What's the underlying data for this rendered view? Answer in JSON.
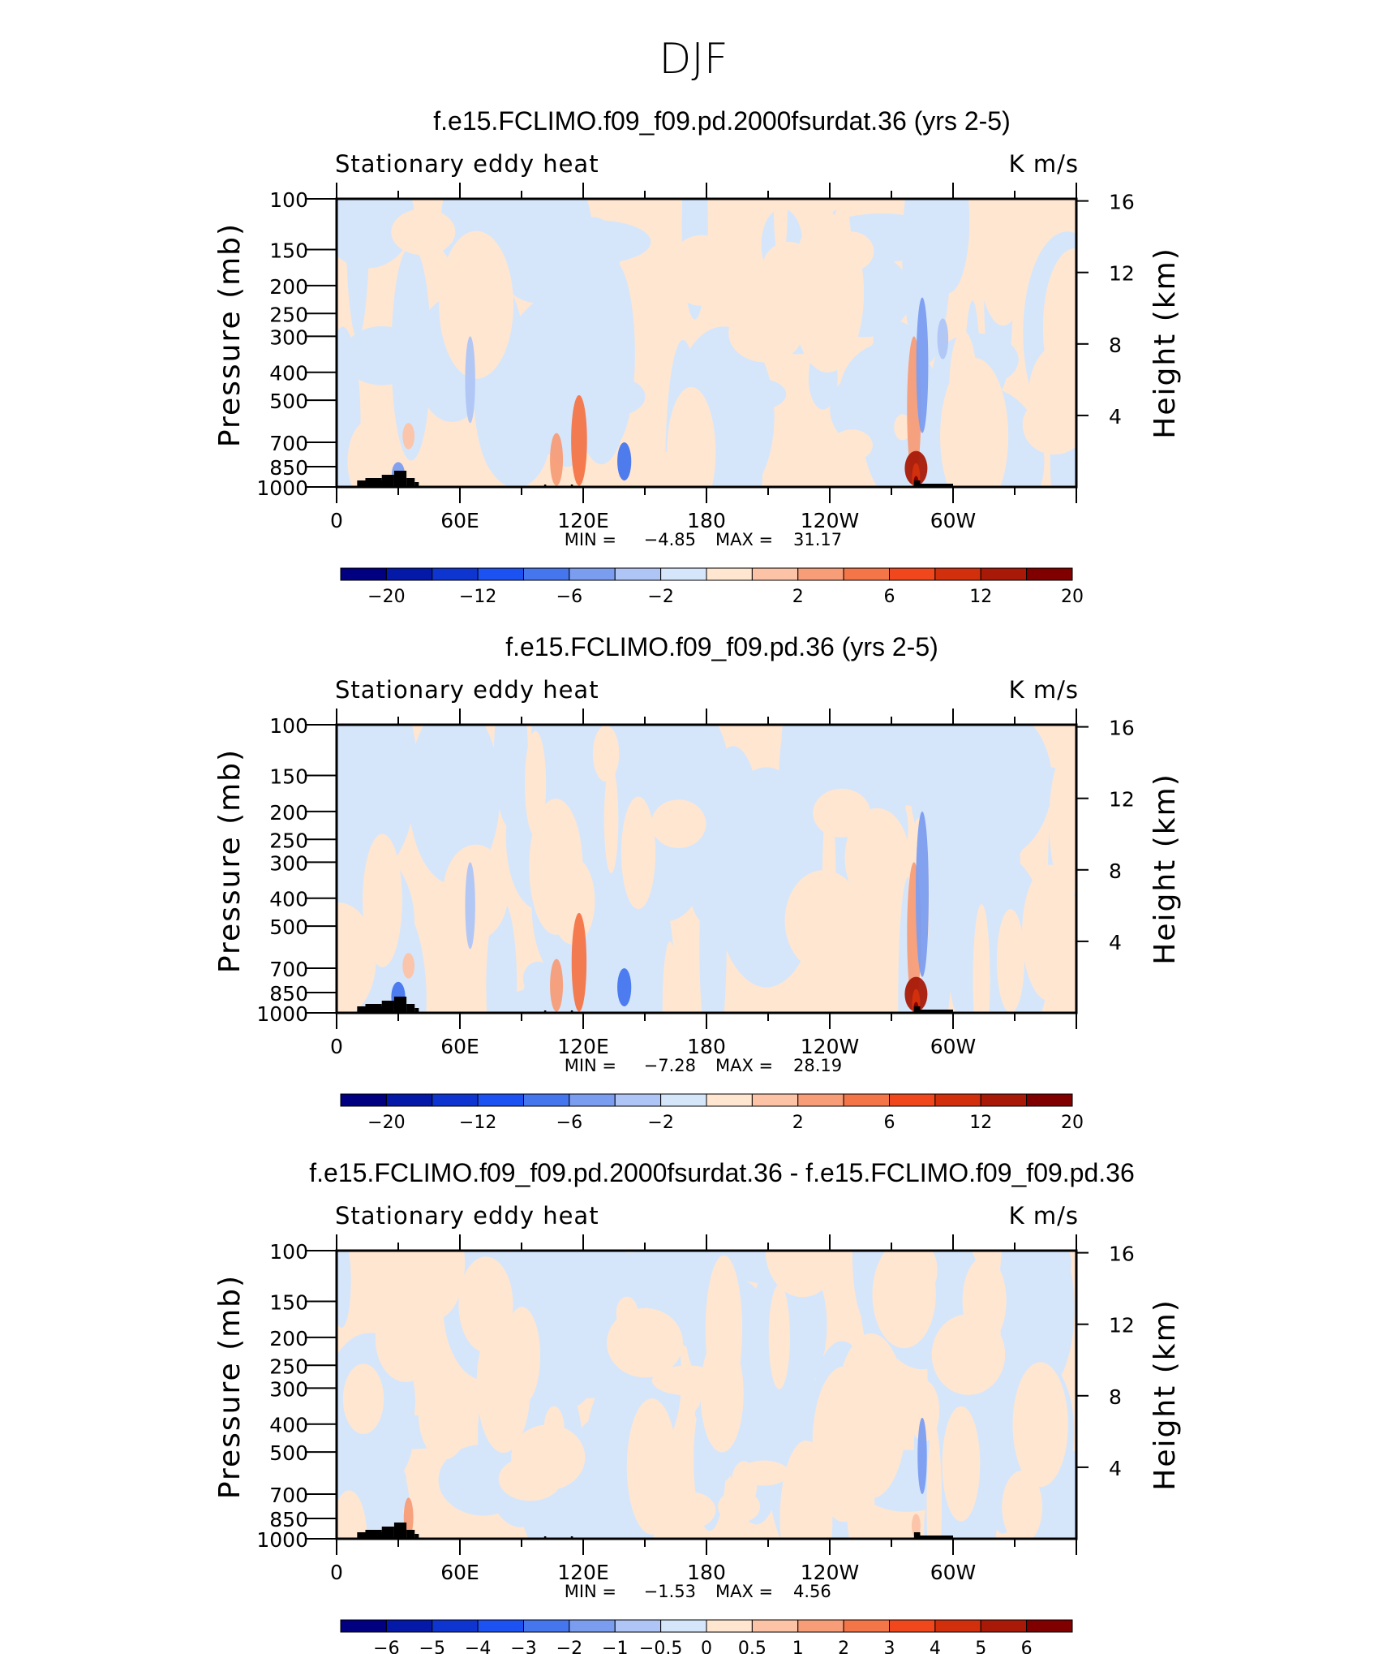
{
  "page": {
    "title": "DJF"
  },
  "colors": {
    "positive_light": "#ffe6d1",
    "negative_light": "#d5e6fb",
    "terrain": "#000000",
    "frame": "#000000"
  },
  "chart_data": [
    {
      "type": "contour",
      "title": "f.e15.FCLIMO.f09_f09.pd.2000fsurdat.36 (yrs 2-5)",
      "left_label": "Stationary eddy heat",
      "right_label": "K m/s",
      "ylabel": "Pressure (mb)",
      "ylabel_right": "Height (km)",
      "x_ticks": [
        "0",
        "60E",
        "120E",
        "180",
        "120W",
        "60W"
      ],
      "y_ticks": [
        "100",
        "150",
        "200",
        "250",
        "300",
        "400",
        "500",
        "700",
        "850",
        "1000"
      ],
      "height_ticks": [
        "16",
        "12",
        "8",
        "4"
      ],
      "stats": {
        "min_label": "MIN =",
        "min": "−4.85",
        "max_label": "MAX =",
        "max": "31.17"
      },
      "colorbar": {
        "colors": [
          "#000080",
          "#0419a8",
          "#0f35d0",
          "#1d52f2",
          "#4576ee",
          "#7b9df0",
          "#afc5f5",
          "#d5e6fb",
          "#ffe6d1",
          "#fcc3a6",
          "#f79d78",
          "#f47548",
          "#f0471d",
          "#d22f0d",
          "#a81a07",
          "#800000"
        ],
        "labels": [
          "−20",
          "−12",
          "−6",
          "−2",
          "2",
          "6",
          "12",
          "20"
        ]
      },
      "anomalies": [
        {
          "lon": 30,
          "p_top": 820,
          "p_bot": 990,
          "value": -5
        },
        {
          "lon": 35,
          "p_top": 600,
          "p_bot": 740,
          "value": 4
        },
        {
          "lon": 65,
          "p_top": 300,
          "p_bot": 600,
          "value": -2
        },
        {
          "lon": 107,
          "p_top": 650,
          "p_bot": 990,
          "value": 5
        },
        {
          "lon": 118,
          "p_top": 480,
          "p_bot": 990,
          "value": 8
        },
        {
          "lon": 140,
          "p_top": 700,
          "p_bot": 950,
          "value": -6
        },
        {
          "lon": 281,
          "p_top": 300,
          "p_bot": 950,
          "value": 6
        },
        {
          "lon": 285,
          "p_top": 220,
          "p_bot": 650,
          "value": -4
        },
        {
          "lon": 282,
          "p_top": 750,
          "p_bot": 990,
          "value": 20
        },
        {
          "lon": 295,
          "p_top": 260,
          "p_bot": 360,
          "value": -3
        }
      ]
    },
    {
      "type": "contour",
      "title": "f.e15.FCLIMO.f09_f09.pd.36 (yrs 2-5)",
      "left_label": "Stationary eddy heat",
      "right_label": "K m/s",
      "ylabel": "Pressure (mb)",
      "ylabel_right": "Height (km)",
      "x_ticks": [
        "0",
        "60E",
        "120E",
        "180",
        "120W",
        "60W"
      ],
      "y_ticks": [
        "100",
        "150",
        "200",
        "250",
        "300",
        "400",
        "500",
        "700",
        "850",
        "1000"
      ],
      "height_ticks": [
        "16",
        "12",
        "8",
        "4"
      ],
      "stats": {
        "min_label": "MIN =",
        "min": "−7.28",
        "max_label": "MAX =",
        "max": "28.19"
      },
      "colorbar": {
        "colors": [
          "#000080",
          "#0419a8",
          "#0f35d0",
          "#1d52f2",
          "#4576ee",
          "#7b9df0",
          "#afc5f5",
          "#d5e6fb",
          "#ffe6d1",
          "#fcc3a6",
          "#f79d78",
          "#f47548",
          "#f0471d",
          "#d22f0d",
          "#a81a07",
          "#800000"
        ],
        "labels": [
          "−20",
          "−12",
          "−6",
          "−2",
          "2",
          "6",
          "12",
          "20"
        ]
      },
      "anomalies": [
        {
          "lon": 30,
          "p_top": 780,
          "p_bot": 990,
          "value": -6
        },
        {
          "lon": 35,
          "p_top": 620,
          "p_bot": 760,
          "value": 4
        },
        {
          "lon": 65,
          "p_top": 300,
          "p_bot": 600,
          "value": -2
        },
        {
          "lon": 107,
          "p_top": 650,
          "p_bot": 990,
          "value": 5
        },
        {
          "lon": 118,
          "p_top": 450,
          "p_bot": 990,
          "value": 7
        },
        {
          "lon": 140,
          "p_top": 700,
          "p_bot": 950,
          "value": -6
        },
        {
          "lon": 281,
          "p_top": 300,
          "p_bot": 950,
          "value": 6
        },
        {
          "lon": 285,
          "p_top": 200,
          "p_bot": 750,
          "value": -5
        },
        {
          "lon": 282,
          "p_top": 750,
          "p_bot": 990,
          "value": 20
        }
      ]
    },
    {
      "type": "contour",
      "title": "f.e15.FCLIMO.f09_f09.pd.2000fsurdat.36 - f.e15.FCLIMO.f09_f09.pd.36",
      "left_label": "Stationary eddy heat",
      "right_label": "K m/s",
      "ylabel": "Pressure (mb)",
      "ylabel_right": "Height (km)",
      "x_ticks": [
        "0",
        "60E",
        "120E",
        "180",
        "120W",
        "60W"
      ],
      "y_ticks": [
        "100",
        "150",
        "200",
        "250",
        "300",
        "400",
        "500",
        "700",
        "850",
        "1000"
      ],
      "height_ticks": [
        "16",
        "12",
        "8",
        "4"
      ],
      "stats": {
        "min_label": "MIN =",
        "min": "−1.53",
        "max_label": "MAX =",
        "max": "4.56"
      },
      "colorbar": {
        "colors": [
          "#000080",
          "#0419a8",
          "#0f35d0",
          "#1d52f2",
          "#4576ee",
          "#7b9df0",
          "#afc5f5",
          "#d5e6fb",
          "#ffe6d1",
          "#fcc3a6",
          "#f79d78",
          "#f47548",
          "#f0471d",
          "#d22f0d",
          "#a81a07",
          "#800000"
        ],
        "labels": [
          "−6",
          "−5",
          "−4",
          "−3",
          "−2",
          "−1",
          "−0.5",
          "0",
          "0.5",
          "1",
          "2",
          "3",
          "4",
          "5",
          "6"
        ]
      },
      "anomalies": [
        {
          "lon": 35,
          "p_top": 720,
          "p_bot": 990,
          "value": 1.5
        },
        {
          "lon": 285,
          "p_top": 380,
          "p_bot": 700,
          "value": -1.2
        },
        {
          "lon": 282,
          "p_top": 820,
          "p_bot": 990,
          "value": 0.8
        }
      ]
    }
  ]
}
